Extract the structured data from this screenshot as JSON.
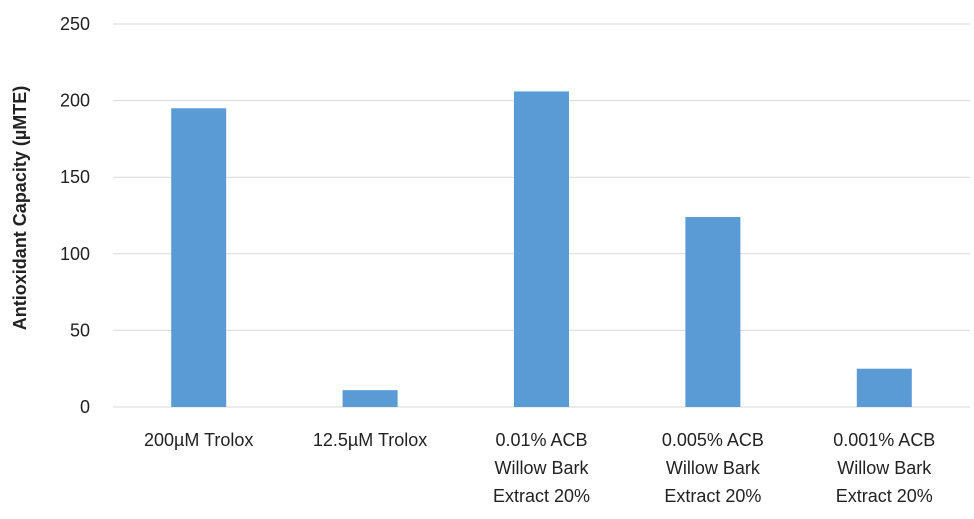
{
  "colors": {
    "bar": "#5b9bd5",
    "grid": "#d9d9d9",
    "text": "#222222"
  },
  "chart_data": {
    "type": "bar",
    "title": "",
    "xlabel": "",
    "ylabel": "Antioxidant Capacity (µMTE)",
    "ylim": [
      0,
      250
    ],
    "yticks": [
      0,
      50,
      100,
      150,
      200,
      250
    ],
    "grid": true,
    "legend": "none",
    "categories": [
      [
        "200µM Trolox"
      ],
      [
        "12.5µM Trolox"
      ],
      [
        "0.01% ACB",
        "Willow Bark",
        "Extract 20%"
      ],
      [
        "0.005% ACB",
        "Willow Bark",
        "Extract 20%"
      ],
      [
        "0.001% ACB",
        "Willow Bark",
        "Extract 20%"
      ]
    ],
    "values": [
      195,
      11,
      206,
      124,
      25
    ]
  }
}
